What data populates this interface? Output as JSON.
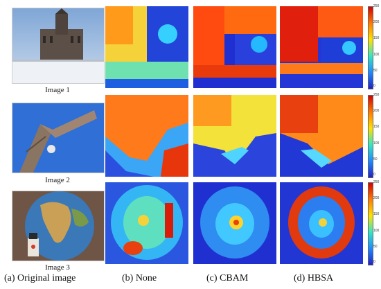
{
  "figure": {
    "images": [
      {
        "label": "Image  1"
      },
      {
        "label": "Image  2"
      },
      {
        "label": "Image  3"
      }
    ],
    "columns": [
      {
        "label": "(a) Original image"
      },
      {
        "label": "(b) None"
      },
      {
        "label": "(c) CBAM"
      },
      {
        "label": "(d) HBSA"
      }
    ],
    "colorbars": [
      {
        "ticks": [
          "250",
          "200",
          "150",
          "100",
          "50",
          "0"
        ]
      },
      {
        "ticks": [
          "250",
          "200",
          "150",
          "100",
          "50",
          "0"
        ]
      },
      {
        "ticks": [
          "250",
          "200",
          "150",
          "100",
          "50",
          "0"
        ]
      }
    ],
    "colors": {
      "heat_high": "#d40000",
      "heat_mid": "#ffe200",
      "heat_low": "#2020c8",
      "sky": "#2f6fd6"
    }
  }
}
